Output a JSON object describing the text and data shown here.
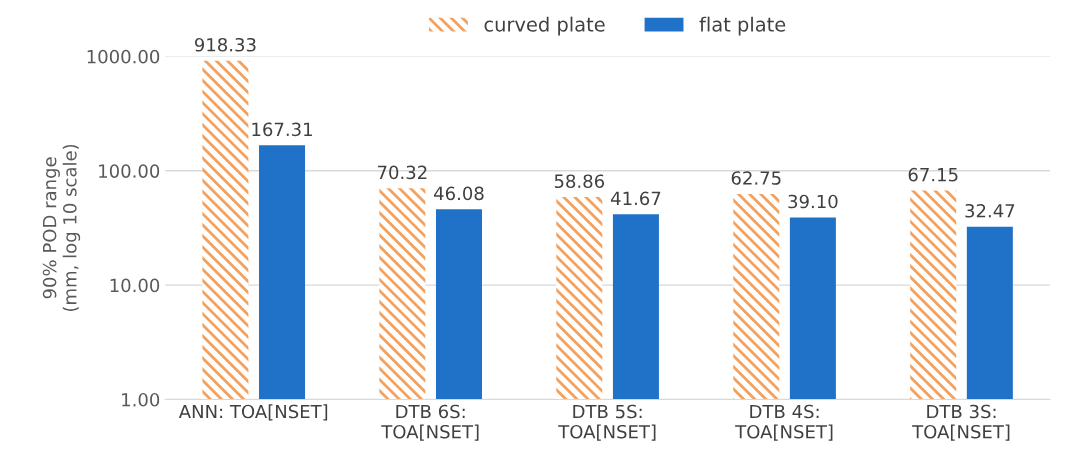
{
  "chart_data": {
    "type": "bar",
    "ylabel": "90% POD range\n(mm, log 10 scale)",
    "categories": [
      "ANN: TOA[NSET]",
      "DTB 6S:\nTOA[NSET]",
      "DTB 5S:\nTOA[NSET]",
      "DTB 4S:\nTOA[NSET]",
      "DTB 3S:\nTOA[NSET]"
    ],
    "series": [
      {
        "name": "curved plate",
        "color": "#f4a15d",
        "values": [
          918.33,
          70.32,
          58.86,
          62.75,
          67.15
        ],
        "value_labels": [
          "918.33",
          "70.32",
          "58.86",
          "62.75",
          "67.15"
        ]
      },
      {
        "name": "flat plate",
        "color": "#1f72c8",
        "values": [
          167.31,
          46.08,
          41.67,
          39.1,
          32.47
        ],
        "value_labels": [
          "167.31",
          "46.08",
          "41.67",
          "39.10",
          "32.47"
        ]
      }
    ],
    "log": "y",
    "ylim": [
      1,
      1000
    ],
    "yticks": [
      {
        "value": 1,
        "label": "1.00"
      },
      {
        "value": 10,
        "label": "10.00"
      },
      {
        "value": 100,
        "label": "100.00"
      },
      {
        "value": 1000,
        "label": "1000.00"
      }
    ],
    "grid": "y",
    "legend": "top"
  }
}
